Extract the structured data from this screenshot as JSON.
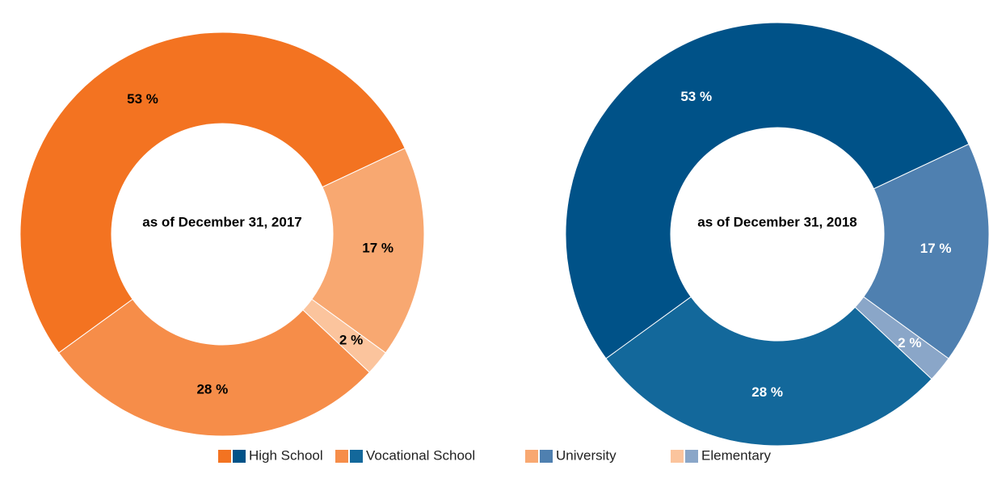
{
  "chart_data": [
    {
      "type": "pie",
      "center_label": "as of December 31, 2017",
      "categories": [
        "High School",
        "University",
        "Elementary",
        "Vocational School"
      ],
      "values": [
        53,
        17,
        2,
        28
      ],
      "value_labels": [
        "53 %",
        "17 %",
        "2 %",
        "28 %"
      ],
      "colors": [
        "#f37321",
        "#f8a871",
        "#fbc49d",
        "#f68d49"
      ],
      "label_color": "#000000"
    },
    {
      "type": "pie",
      "center_label": "as of December 31, 2018",
      "categories": [
        "High School",
        "University",
        "Elementary",
        "Vocational School"
      ],
      "values": [
        53,
        17,
        2,
        28
      ],
      "value_labels": [
        "53 %",
        "17 %",
        "2 %",
        "28 %"
      ],
      "colors": [
        "#005288",
        "#4f80b0",
        "#8aa6c8",
        "#13689b"
      ],
      "label_color": "#ffffff"
    }
  ]
}
